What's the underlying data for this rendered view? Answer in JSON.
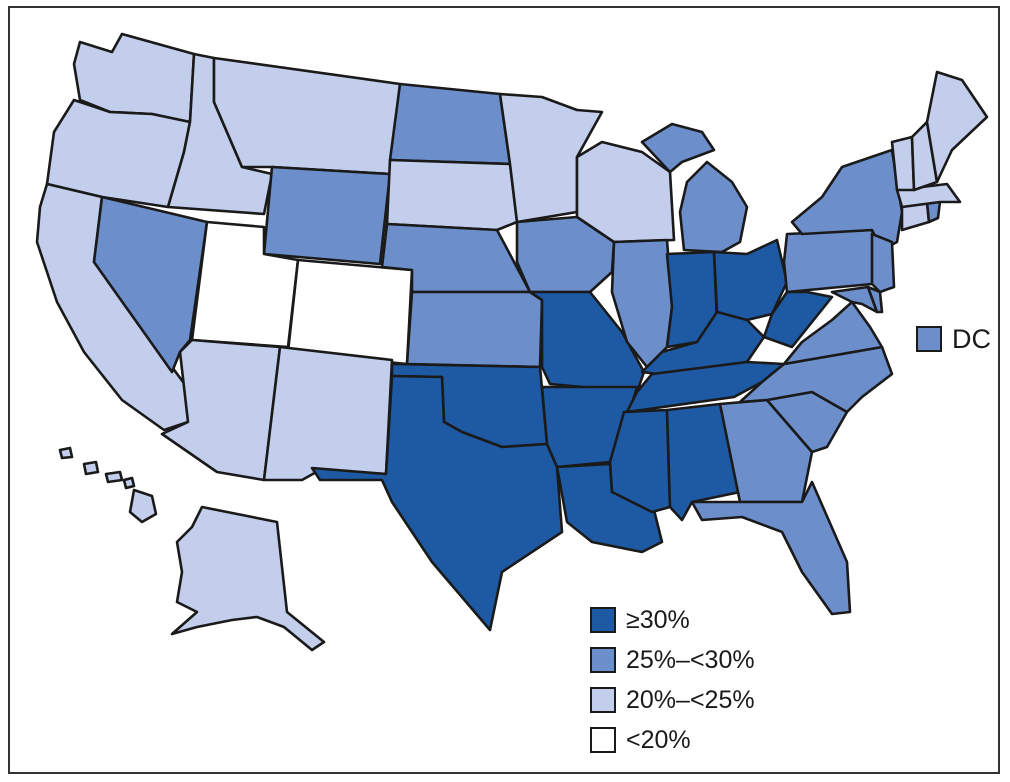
{
  "map": {
    "legend": [
      {
        "id": "c4",
        "label": "≥30%",
        "color": "#1e5aa3"
      },
      {
        "id": "c3",
        "label": "25%–<30%",
        "color": "#6c8fcc"
      },
      {
        "id": "c2",
        "label": "20%–<25%",
        "color": "#c3ceec"
      },
      {
        "id": "c1",
        "label": "<20%",
        "color": "#ffffff"
      }
    ],
    "dc": {
      "label": "DC",
      "class": "c3"
    },
    "states": {
      "WA": "c2",
      "OR": "c2",
      "CA": "c2",
      "ID": "c2",
      "NV": "c3",
      "UT": "c1",
      "AZ": "c2",
      "MT": "c2",
      "WY": "c3",
      "CO": "c1",
      "NM": "c2",
      "ND": "c3",
      "SD": "c2",
      "NE": "c3",
      "KS": "c3",
      "OK": "c4",
      "TX": "c4",
      "MN": "c2",
      "IA": "c3",
      "MO": "c4",
      "AR": "c4",
      "LA": "c4",
      "WI": "c2",
      "IL": "c3",
      "MI": "c3",
      "IN": "c4",
      "OH": "c4",
      "KY": "c4",
      "TN": "c4",
      "MS": "c4",
      "AL": "c4",
      "GA": "c3",
      "FL": "c3",
      "SC": "c3",
      "NC": "c3",
      "VA": "c3",
      "WV": "c4",
      "PA": "c3",
      "NY": "c3",
      "NJ": "c3",
      "DE": "c3",
      "MD": "c3",
      "CT": "c2",
      "RI": "c3",
      "MA": "c2",
      "VT": "c2",
      "NH": "c2",
      "ME": "c2",
      "AK": "c2",
      "HI": "c2"
    }
  }
}
